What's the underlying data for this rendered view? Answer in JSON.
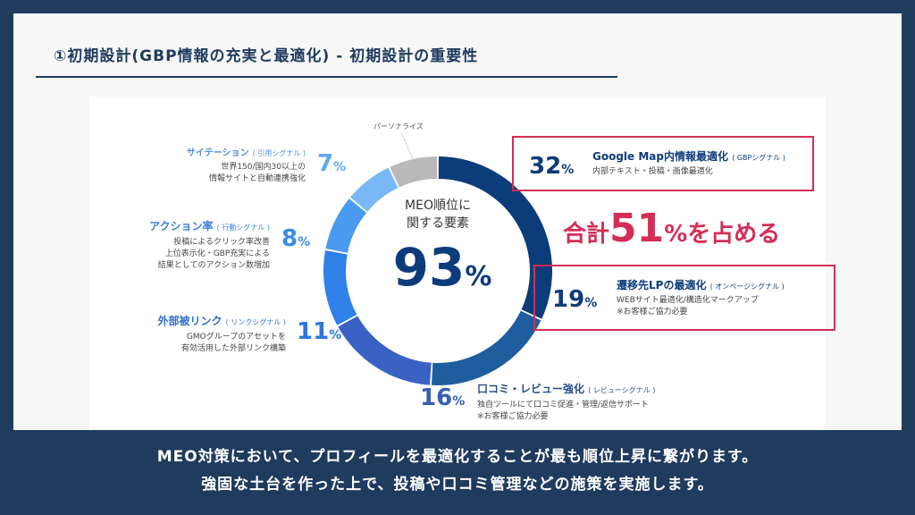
{
  "title": "①初期設計(GBP情報の充実と最適化) - 初期設計の重要性",
  "center": {
    "line1": "MEO順位に",
    "line2": "関する要素",
    "value": "93",
    "unit": "%"
  },
  "callout": {
    "prefix": "合計",
    "value": "51",
    "suffix": "%を占める"
  },
  "colors": {
    "accent": "#d42e56",
    "navy": "#0d3c7a"
  },
  "chart_data": {
    "type": "pie",
    "title": "MEO順位に関する要素",
    "series": [
      {
        "name": "Google Map内情報最適化",
        "value": 32
      },
      {
        "name": "遷移先LPの最適化",
        "value": 19
      },
      {
        "name": "口コミ・レビュー強化",
        "value": 16
      },
      {
        "name": "外部被リンク",
        "value": 11
      },
      {
        "name": "アクション率",
        "value": 8
      },
      {
        "name": "サイテーション",
        "value": 7
      },
      {
        "name": "パーソナライズ",
        "value": 7
      }
    ]
  },
  "segments": {
    "gbp": {
      "pct": "32",
      "head": "Google Map内情報最適化",
      "sub": "( GBPシグナル )",
      "desc": "内部テキスト・投稿・画像最適化"
    },
    "lp": {
      "pct": "19",
      "head": "遷移先LPの最適化",
      "sub": "( オンページシグナル )",
      "desc1": "WEBサイト最適化/構造化マークアップ",
      "desc2": "※お客様ご協力必要"
    },
    "review": {
      "pct": "16",
      "head": "口コミ・レビュー強化",
      "sub": "( レビューシグナル )",
      "desc1": "独自ツールにて口コミ促進・管理/返信サポート",
      "desc2": "※お客様ご協力必要"
    },
    "link": {
      "pct": "11",
      "head": "外部被リンク",
      "sub": "( リンクシグナル )",
      "desc1": "GMOグループのアセットを",
      "desc2": "有効活用した外部リンク構築"
    },
    "action": {
      "pct": "8",
      "head": "アクション率",
      "sub": "( 行動シグナル )",
      "desc1": "投稿によるクリック率改善",
      "desc2": "上位表示化・GBP充実による",
      "desc3": "結果としてのアクション数増加"
    },
    "citation": {
      "pct": "7",
      "head": "サイテーション",
      "sub": "( 引用シグナル )",
      "desc1": "世界150/国内30以上の",
      "desc2": "情報サイトと自動連携強化"
    },
    "personal": {
      "label": "パーソナライズ"
    }
  },
  "percent": "%",
  "footer": {
    "line1": "MEO対策において、プロフィールを最適化することが最も順位上昇に繋がります。",
    "line2": "強固な土台を作った上で、投稿や口コミ管理などの施策を実施します。"
  }
}
